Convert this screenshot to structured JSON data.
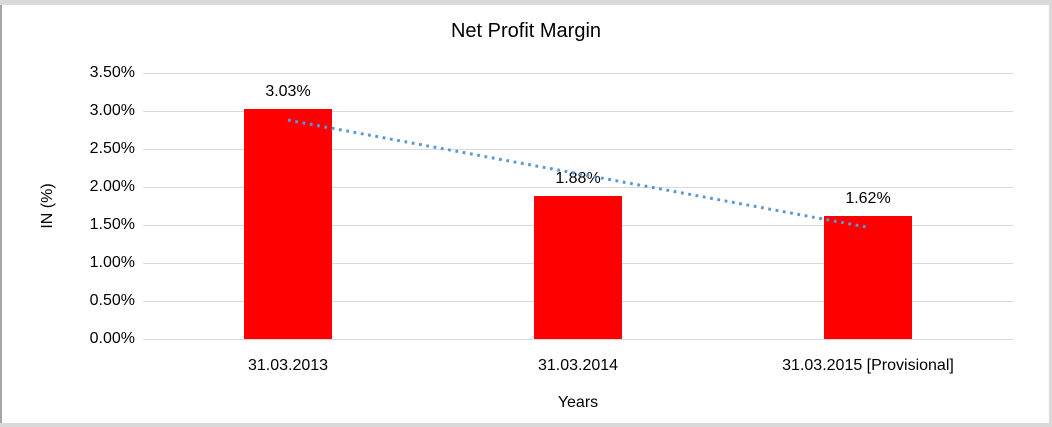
{
  "chart_data": {
    "type": "bar",
    "title": "Net Profit Margin",
    "xlabel": "Years",
    "ylabel": "IN (%)",
    "categories": [
      "31.03.2013",
      "31.03.2014",
      "31.03.2015 [Provisional]"
    ],
    "values": [
      3.03,
      1.88,
      1.62
    ],
    "value_labels": [
      "3.03%",
      "1.88%",
      "1.62%"
    ],
    "ylim": [
      0,
      3.5
    ],
    "ytick_step": 0.5,
    "yticks": [
      {
        "value": 3.5,
        "label": "3.50%"
      },
      {
        "value": 3.0,
        "label": "3.00%"
      },
      {
        "value": 2.5,
        "label": "2.50%"
      },
      {
        "value": 2.0,
        "label": "2.00%"
      },
      {
        "value": 1.5,
        "label": "1.50%"
      },
      {
        "value": 1.0,
        "label": "1.00%"
      },
      {
        "value": 0.5,
        "label": "0.50%"
      },
      {
        "value": 0.0,
        "label": "0.00%"
      }
    ],
    "grid": true,
    "legend": false,
    "colors": {
      "bar": "#FF0000",
      "trendline": "#5D97D3",
      "gridline": "#D9D9D9",
      "text": "#000000",
      "background": "#FFFFFF"
    },
    "trendline": {
      "style": "dotted",
      "start": {
        "category_index": 0,
        "value": 2.88
      },
      "end": {
        "category_index": 2,
        "value": 1.47
      }
    }
  }
}
